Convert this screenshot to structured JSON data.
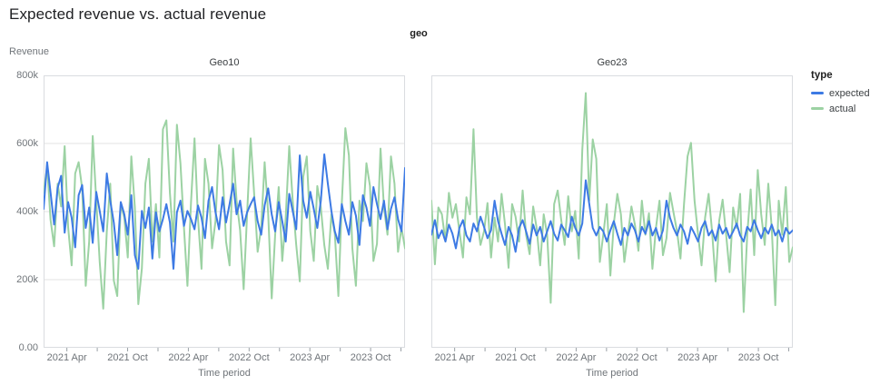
{
  "page_title": "Expected revenue vs. actual revenue",
  "facet_group_label": "geo",
  "legend": {
    "title": "type",
    "items": [
      {
        "label": "expected",
        "color": "#3d7ae4"
      },
      {
        "label": "actual",
        "color": "#9cd2a3"
      }
    ]
  },
  "axes": {
    "y_title": "Revenue",
    "x_title": "Time period",
    "y_ticks": [
      {
        "label": "800k",
        "value": 800
      },
      {
        "label": "600k",
        "value": 600
      },
      {
        "label": "400k",
        "value": 400
      },
      {
        "label": "200k",
        "value": 200
      },
      {
        "label": "0.00",
        "value": 0
      }
    ],
    "x_minor_tick_months": [
      3,
      6,
      9,
      12,
      15,
      18,
      21,
      24,
      27,
      30,
      33,
      36
    ],
    "x_tick_labels": [
      {
        "label": "2021 Apr",
        "month": 3
      },
      {
        "label": "2021 Oct",
        "month": 9
      },
      {
        "label": "2022 Apr",
        "month": 15
      },
      {
        "label": "2022 Oct",
        "month": 21
      },
      {
        "label": "2023 Apr",
        "month": 27
      },
      {
        "label": "2023 Oct",
        "month": 33
      }
    ],
    "x_domain_months": [
      0.7,
      36.4
    ],
    "y_domain_thousands": [
      0,
      800
    ]
  },
  "chart_data": [
    {
      "type": "line",
      "facet_title": "Geo10",
      "x_meaning": "dates from 2021 Jan to 2024 Jan, evenly spaced",
      "unit": "revenue in thousands (k)",
      "ylim": [
        0,
        800
      ],
      "series": [
        {
          "name": "expected",
          "color": "#3d7ae4",
          "values": [
            408,
            545,
            455,
            362,
            470,
            505,
            338,
            428,
            382,
            295,
            448,
            478,
            352,
            412,
            308,
            458,
            402,
            342,
            512,
            432,
            368,
            272,
            428,
            392,
            332,
            448,
            272,
            232,
            402,
            352,
            412,
            262,
            398,
            342,
            378,
            422,
            368,
            232,
            398,
            432,
            358,
            402,
            378,
            348,
            418,
            382,
            322,
            432,
            472,
            398,
            348,
            442,
            368,
            422,
            482,
            392,
            432,
            358,
            398,
            422,
            442,
            372,
            332,
            418,
            468,
            392,
            342,
            428,
            372,
            312,
            452,
            402,
            348,
            565,
            432,
            382,
            458,
            408,
            352,
            432,
            568,
            482,
            402,
            342,
            308,
            422,
            372,
            332,
            428,
            388,
            302,
            448,
            412,
            358,
            472,
            422,
            378,
            432,
            348,
            408,
            442,
            378,
            342,
            528
          ]
        },
        {
          "name": "actual",
          "color": "#9cd2a3",
          "values": [
            455,
            532,
            375,
            298,
            482,
            415,
            592,
            355,
            242,
            512,
            545,
            468,
            182,
            312,
            622,
            432,
            252,
            115,
            342,
            482,
            198,
            152,
            422,
            382,
            265,
            562,
            412,
            128,
            232,
            482,
            555,
            312,
            422,
            265,
            642,
            668,
            455,
            312,
            655,
            542,
            352,
            182,
            425,
            615,
            382,
            232,
            555,
            482,
            292,
            372,
            595,
            522,
            312,
            242,
            585,
            432,
            345,
            172,
            392,
            615,
            455,
            282,
            352,
            545,
            395,
            145,
            332,
            472,
            255,
            382,
            592,
            432,
            302,
            195,
            502,
            562,
            342,
            255,
            475,
            412,
            302,
            232,
            392,
            335,
            152,
            425,
            645,
            565,
            292,
            182,
            432,
            372,
            542,
            475,
            255,
            305,
            585,
            412,
            332,
            562,
            482,
            282,
            352,
            292
          ]
        }
      ]
    },
    {
      "type": "line",
      "facet_title": "Geo23",
      "x_meaning": "dates from 2021 Jan to 2024 Jan, evenly spaced",
      "unit": "revenue in thousands (k)",
      "ylim": [
        0,
        800
      ],
      "series": [
        {
          "name": "expected",
          "color": "#3d7ae4",
          "values": [
            332,
            375,
            322,
            345,
            312,
            362,
            335,
            292,
            352,
            375,
            330,
            312,
            365,
            342,
            385,
            355,
            322,
            345,
            432,
            372,
            335,
            302,
            355,
            330,
            282,
            352,
            375,
            342,
            305,
            362,
            330,
            355,
            312,
            342,
            372,
            335,
            315,
            362,
            345,
            325,
            385,
            352,
            330,
            365,
            492,
            422,
            352,
            330,
            355,
            342,
            312,
            345,
            372,
            335,
            302,
            352,
            330,
            365,
            345,
            312,
            355,
            335,
            372,
            330,
            352,
            315,
            345,
            432,
            382,
            352,
            330,
            362,
            342,
            305,
            355,
            335,
            312,
            352,
            372,
            330,
            345,
            315,
            362,
            335,
            352,
            322,
            342,
            365,
            330,
            312,
            355,
            342,
            375,
            345,
            322,
            352,
            335,
            362,
            330,
            345,
            312,
            352,
            335,
            345
          ]
        },
        {
          "name": "actual",
          "color": "#9cd2a3",
          "values": [
            432,
            245,
            412,
            392,
            312,
            455,
            382,
            422,
            342,
            265,
            442,
            392,
            642,
            382,
            302,
            342,
            425,
            265,
            382,
            312,
            452,
            362,
            235,
            422,
            385,
            312,
            462,
            332,
            275,
            415,
            352,
            242,
            392,
            332,
            132,
            422,
            462,
            375,
            302,
            445,
            342,
            402,
            262,
            582,
            748,
            432,
            612,
            555,
            252,
            332,
            422,
            212,
            365,
            452,
            392,
            252,
            332,
            415,
            362,
            285,
            432,
            332,
            395,
            232,
            352,
            432,
            272,
            322,
            455,
            398,
            342,
            262,
            422,
            562,
            602,
            432,
            332,
            242,
            382,
            452,
            342,
            195,
            372,
            435,
            332,
            222,
            412,
            352,
            452,
            105,
            332,
            465,
            272,
            522,
            392,
            302,
            482,
            352,
            125,
            432,
            332,
            472,
            252,
            295
          ]
        }
      ]
    }
  ]
}
